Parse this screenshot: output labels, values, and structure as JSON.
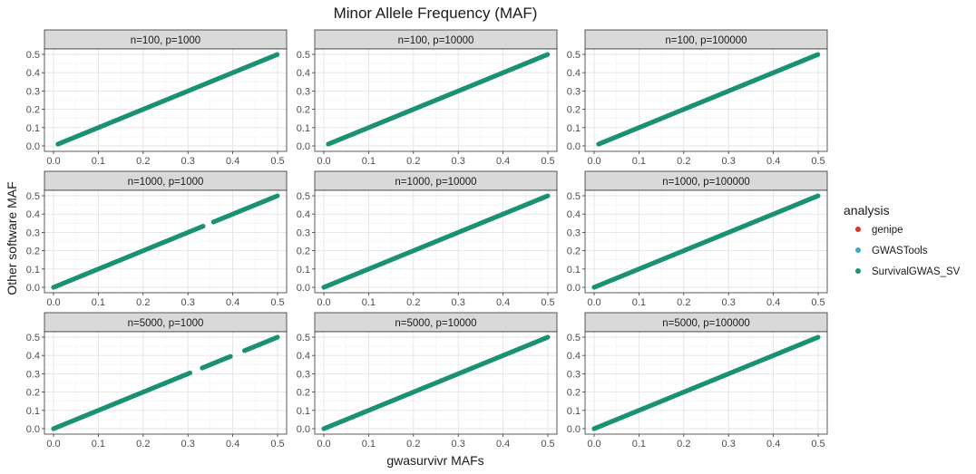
{
  "chart_data": {
    "type": "scatter",
    "title": "Minor Allele Frequency (MAF)",
    "xlabel": "gwasurvivr MAFs",
    "ylabel": "Other software MAF",
    "xlim": [
      0,
      0.5
    ],
    "ylim": [
      0,
      0.5
    ],
    "x_ticks": [
      "0.0",
      "0.1",
      "0.2",
      "0.3",
      "0.4",
      "0.5"
    ],
    "y_ticks": [
      "0.0",
      "0.1",
      "0.2",
      "0.3",
      "0.4",
      "0.5"
    ],
    "grid": true,
    "legend": {
      "title": "analysis",
      "position": "right",
      "entries": [
        {
          "name": "genipe",
          "color": "#d7342a"
        },
        {
          "name": "GWASTools",
          "color": "#3fa9c4"
        },
        {
          "name": "SurvivalGWAS_SV",
          "color": "#1b9174"
        }
      ]
    },
    "panels": [
      {
        "label": "n=100, p=1000",
        "x_range": [
          0.01,
          0.5
        ],
        "gaps": [],
        "series": "SurvivalGWAS_SV",
        "relation": "y = x"
      },
      {
        "label": "n=100, p=10000",
        "x_range": [
          0.01,
          0.5
        ],
        "gaps": [],
        "series": "SurvivalGWAS_SV",
        "relation": "y = x"
      },
      {
        "label": "n=100, p=100000",
        "x_range": [
          0.01,
          0.5
        ],
        "gaps": [],
        "series": "SurvivalGWAS_SV",
        "relation": "y = x"
      },
      {
        "label": "n=1000, p=1000",
        "x_range": [
          0.0,
          0.5
        ],
        "gaps": [
          [
            0.335,
            0.355
          ]
        ],
        "series": "SurvivalGWAS_SV",
        "relation": "y = x"
      },
      {
        "label": "n=1000, p=10000",
        "x_range": [
          0.0,
          0.5
        ],
        "gaps": [],
        "series": "SurvivalGWAS_SV",
        "relation": "y = x"
      },
      {
        "label": "n=1000, p=100000",
        "x_range": [
          0.0,
          0.5
        ],
        "gaps": [],
        "series": "SurvivalGWAS_SV",
        "relation": "y = x"
      },
      {
        "label": "n=5000, p=1000",
        "x_range": [
          0.0,
          0.5
        ],
        "gaps": [
          [
            0.305,
            0.33
          ],
          [
            0.395,
            0.425
          ]
        ],
        "series": "SurvivalGWAS_SV",
        "relation": "y = x"
      },
      {
        "label": "n=5000, p=10000",
        "x_range": [
          0.0,
          0.5
        ],
        "gaps": [],
        "series": "SurvivalGWAS_SV",
        "relation": "y = x"
      },
      {
        "label": "n=5000, p=100000",
        "x_range": [
          0.0,
          0.5
        ],
        "gaps": [],
        "series": "SurvivalGWAS_SV",
        "relation": "y = x"
      }
    ]
  }
}
